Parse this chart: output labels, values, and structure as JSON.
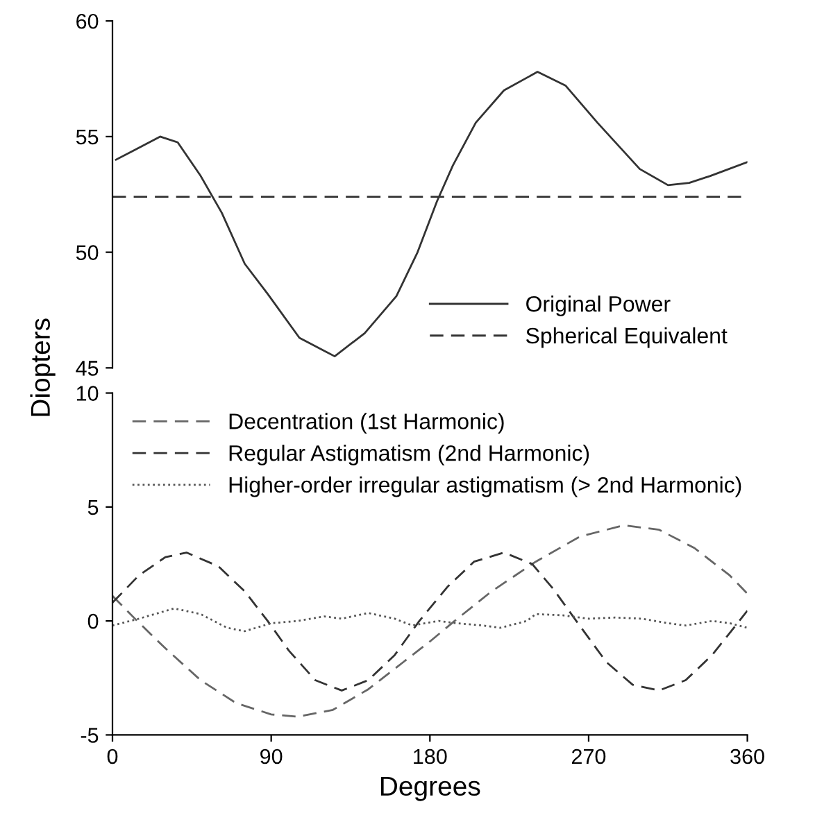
{
  "chart_data": [
    {
      "type": "line",
      "ylabel": "Diopters",
      "xlim": [
        0,
        360
      ],
      "ylim": [
        45,
        60
      ],
      "yticks": [
        45,
        50,
        55,
        60
      ],
      "tick_labels": "y",
      "grid": false,
      "legend": "bottom right",
      "series": [
        {
          "name": "Original Power",
          "color": "#333333",
          "line_style": "solid",
          "x": [
            2,
            12,
            27,
            37,
            50,
            62,
            75,
            88,
            106,
            126,
            143,
            161,
            173,
            184,
            193,
            206,
            222,
            241,
            257,
            275,
            299,
            315,
            327,
            339,
            360
          ],
          "values": [
            54.0,
            54.4,
            55.0,
            54.75,
            53.3,
            51.7,
            49.5,
            48.2,
            46.3,
            45.5,
            46.5,
            48.1,
            50.0,
            52.2,
            53.75,
            55.6,
            57.0,
            57.8,
            57.2,
            55.6,
            53.6,
            52.9,
            53.0,
            53.3,
            53.9
          ]
        },
        {
          "name": "Spherical Equivalent",
          "color": "#333333",
          "line_style": "dashed",
          "x": [
            0,
            360
          ],
          "values": [
            52.4,
            52.4
          ]
        }
      ]
    },
    {
      "type": "line",
      "xlabel": "Degrees",
      "xlim": [
        0,
        360
      ],
      "xticks": [
        0,
        90,
        180,
        270,
        360
      ],
      "ylim": [
        -5,
        10
      ],
      "yticks": [
        -5,
        0,
        5,
        10
      ],
      "grid": false,
      "legend": "top left",
      "series": [
        {
          "name": "Decentration (1st Harmonic)",
          "color": "#666666",
          "line_style": "dashed",
          "x": [
            0,
            14,
            30,
            50,
            70,
            90,
            105,
            125,
            145,
            165,
            180,
            194,
            215,
            240,
            265,
            290,
            310,
            330,
            350,
            360
          ],
          "values": [
            1.1,
            0,
            -1.2,
            -2.6,
            -3.6,
            -4.1,
            -4.2,
            -3.9,
            -3.0,
            -1.8,
            -0.9,
            0,
            1.3,
            2.6,
            3.7,
            4.2,
            4.0,
            3.2,
            2.0,
            1.2
          ]
        },
        {
          "name": "Regular Astigmatism (2nd Harmonic)",
          "color": "#333333",
          "line_style": "dashed",
          "x": [
            0,
            15,
            30,
            42,
            60,
            75,
            88,
            100,
            115,
            130,
            145,
            160,
            174,
            190,
            205,
            222,
            238,
            250,
            263,
            280,
            295,
            310,
            325,
            340,
            360
          ],
          "values": [
            0.8,
            2.0,
            2.8,
            3.0,
            2.4,
            1.3,
            0,
            -1.3,
            -2.6,
            -3.05,
            -2.6,
            -1.5,
            0,
            1.5,
            2.6,
            3.0,
            2.5,
            1.4,
            0,
            -1.8,
            -2.8,
            -3.05,
            -2.6,
            -1.5,
            0.45
          ]
        },
        {
          "name": "Higher-order irregular astigmatism (> 2nd Harmonic)",
          "color": "#555555",
          "line_style": "dotted",
          "x": [
            0,
            15,
            35,
            50,
            65,
            75,
            90,
            105,
            120,
            130,
            145,
            160,
            170,
            185,
            195,
            210,
            220,
            235,
            240,
            255,
            270,
            285,
            300,
            315,
            325,
            340,
            350,
            360
          ],
          "values": [
            -0.2,
            0.1,
            0.55,
            0.3,
            -0.3,
            -0.45,
            -0.1,
            0,
            0.2,
            0.1,
            0.35,
            0.1,
            -0.2,
            0,
            -0.1,
            -0.2,
            -0.3,
            0,
            0.3,
            0.25,
            0.1,
            0.15,
            0.1,
            -0.1,
            -0.2,
            0,
            -0.1,
            -0.3
          ]
        }
      ]
    }
  ]
}
